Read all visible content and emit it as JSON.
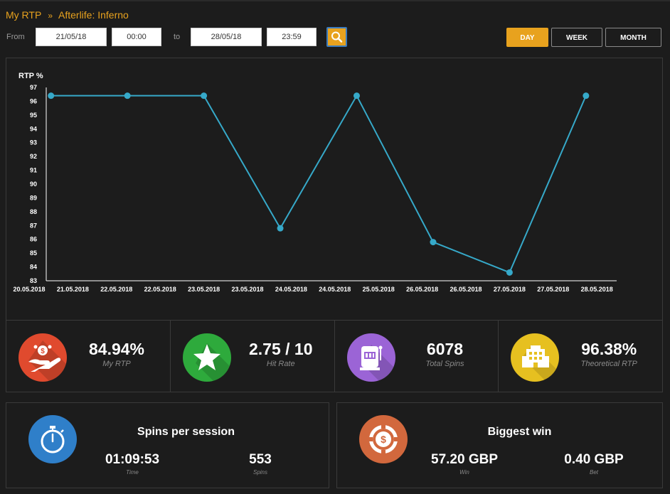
{
  "breadcrumb": {
    "root": "My RTP",
    "separator": "»",
    "current": "Afterlife: Inferno"
  },
  "filter": {
    "from_label": "From",
    "from_date": "21/05/18",
    "from_time": "00:00",
    "to_label": "to",
    "to_date": "28/05/18",
    "to_time": "23:59",
    "search_icon": "search-icon",
    "ranges": [
      {
        "label": "DAY",
        "active": true
      },
      {
        "label": "WEEK",
        "active": false
      },
      {
        "label": "MONTH",
        "active": false
      }
    ]
  },
  "colors": {
    "accent": "#e8a21e",
    "line": "#36a9c9",
    "red": "#e04a2e",
    "green": "#2eaa3c",
    "purple": "#9b64d6",
    "yellow": "#e6c020",
    "blue": "#2f7fc9",
    "orange": "#d2683d"
  },
  "chart_data": {
    "type": "line",
    "ylabel": "RTP %",
    "ylim": [
      83,
      97
    ],
    "yticks": [
      83,
      84,
      85,
      86,
      87,
      88,
      89,
      90,
      91,
      92,
      93,
      94,
      95,
      96,
      97
    ],
    "x": [
      "20.05.2018",
      "21.05.2018",
      "22.05.2018",
      "22.05.2018",
      "23.05.2018",
      "23.05.2018",
      "24.05.2018",
      "24.05.2018",
      "25.05.2018",
      "26.05.2018",
      "26.05.2018",
      "27.05.2018",
      "27.05.2018",
      "28.05.2018"
    ],
    "series": [
      {
        "points": [
          {
            "x_index": 0.5,
            "y": 96.4
          },
          {
            "x_index": 2.25,
            "y": 96.4
          },
          {
            "x_index": 4.0,
            "y": 96.4
          },
          {
            "x_index": 5.75,
            "y": 86.8
          },
          {
            "x_index": 7.5,
            "y": 96.4
          },
          {
            "x_index": 9.25,
            "y": 85.8
          },
          {
            "x_index": 11.0,
            "y": 83.6
          },
          {
            "x_index": 12.75,
            "y": 96.4
          }
        ]
      }
    ],
    "grid": false
  },
  "stats": [
    {
      "value": "84.94%",
      "label": "My RTP",
      "icon": "hand-money-icon"
    },
    {
      "value": "2.75 / 10",
      "label": "Hit Rate",
      "icon": "star-icon"
    },
    {
      "value": "6078",
      "label": "Total Spins",
      "icon": "slot-machine-icon"
    },
    {
      "value": "96.38%",
      "label": "Theoretical RTP",
      "icon": "building-icon"
    }
  ],
  "session": {
    "title": "Spins per session",
    "icon": "stopwatch-icon",
    "time_value": "01:09:53",
    "time_label": "Time",
    "spins_value": "553",
    "spins_label": "Spins"
  },
  "biggest_win": {
    "title": "Biggest win",
    "icon": "casino-chip-icon",
    "win_value": "57.20 GBP",
    "win_label": "Win",
    "bet_value": "0.40 GBP",
    "bet_label": "Bet"
  }
}
